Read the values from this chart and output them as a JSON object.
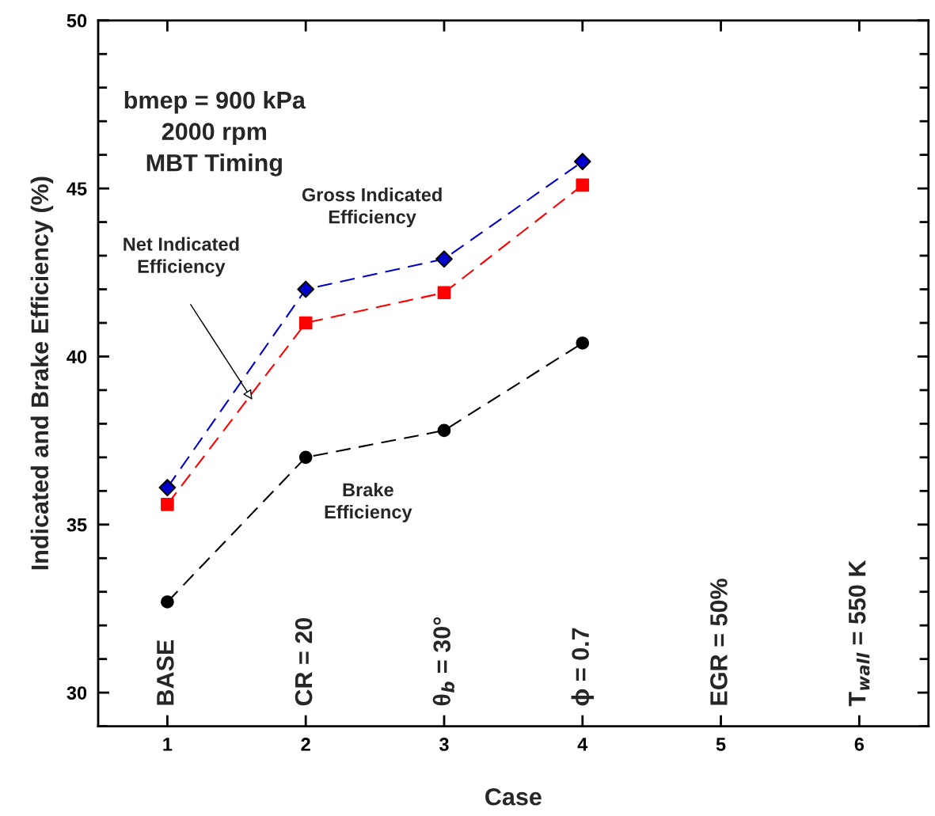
{
  "chart_data": {
    "type": "line",
    "xlabel": "Case",
    "ylabel": "Indicated and Brake Efficiency (%)",
    "x": [
      1,
      2,
      3,
      4
    ],
    "series": [
      {
        "color": "#0000cc",
        "marker": "diamond",
        "line_style": "dashed",
        "values": [
          36.1,
          42.0,
          42.9,
          45.8
        ]
      },
      {
        "color": "#ff0000",
        "marker": "square",
        "line_style": "dashed",
        "values": [
          35.6,
          41.0,
          41.9,
          45.1
        ]
      },
      {
        "color": "#000000",
        "marker": "circle",
        "line_style": "dashed",
        "values": [
          32.7,
          37.0,
          37.8,
          40.4
        ]
      }
    ],
    "xlim": [
      0.5,
      6.5
    ],
    "ylim": [
      29,
      50
    ],
    "xticks": [
      1,
      2,
      3,
      4,
      5,
      6
    ],
    "yticks": [
      {
        "value": 29,
        "label": null
      },
      30,
      {
        "value": 31,
        "label": null
      },
      {
        "value": 32,
        "label": null
      },
      {
        "value": 33,
        "label": null
      },
      {
        "value": 34,
        "label": null
      },
      35,
      {
        "value": 36,
        "label": null
      },
      {
        "value": 37,
        "label": null
      },
      {
        "value": 38,
        "label": null
      },
      {
        "value": 39,
        "label": null
      },
      40,
      {
        "value": 41,
        "label": null
      },
      {
        "value": 42,
        "label": null
      },
      {
        "value": 43,
        "label": null
      },
      {
        "value": 44,
        "label": null
      },
      45,
      {
        "value": 46,
        "label": null
      },
      {
        "value": 47,
        "label": null
      },
      {
        "value": 48,
        "label": null
      },
      {
        "value": 49,
        "label": null
      },
      50
    ],
    "grid": false,
    "annotations": [
      "bmep = 900 kPa\n2000 rpm\nMBT Timing",
      "Gross Indicated\nEfficiency",
      "Net Indicated\nEfficiency",
      "Brake\nEfficiency",
      "BASE",
      "CR = 20",
      "θ$_{b}$ = 30°",
      "ϕ = 0.7",
      "EGR = 50%",
      "T$_{wall}$ = 550 K"
    ]
  }
}
